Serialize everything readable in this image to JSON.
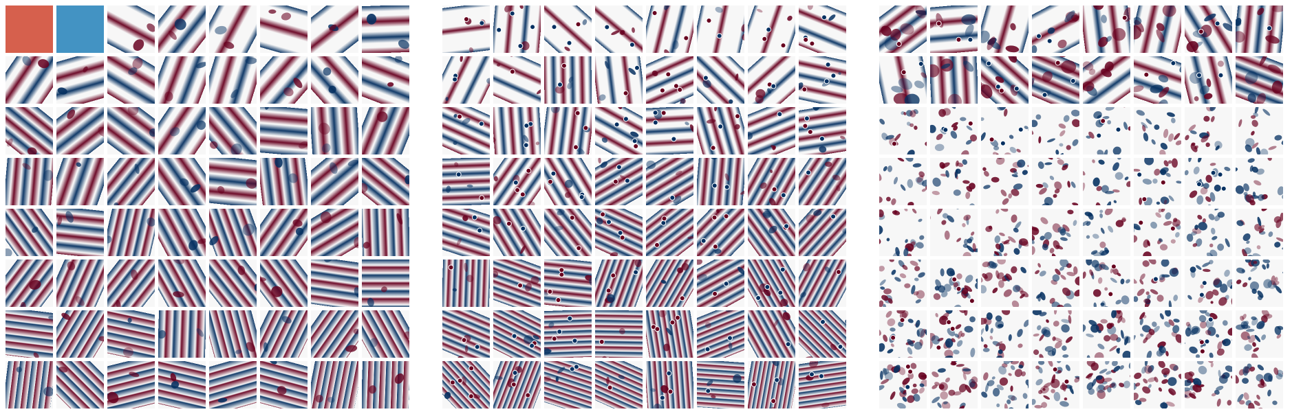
{
  "figure": {
    "colormap": {
      "negative": "#053061",
      "mid_negative": "#4393c3",
      "neutral": "#f7f7f7",
      "mid_positive": "#d6604d",
      "positive": "#67001f"
    },
    "panels": [
      {
        "id": "a",
        "rows": 8,
        "cols": 8,
        "style": "smooth-low-frequency",
        "markers": false
      },
      {
        "id": "b",
        "rows": 8,
        "cols": 8,
        "style": "oriented-with-dot-markers",
        "markers": true
      },
      {
        "id": "c",
        "rows": 8,
        "cols": 8,
        "style": "high-frequency-noisy",
        "markers": true
      }
    ]
  }
}
